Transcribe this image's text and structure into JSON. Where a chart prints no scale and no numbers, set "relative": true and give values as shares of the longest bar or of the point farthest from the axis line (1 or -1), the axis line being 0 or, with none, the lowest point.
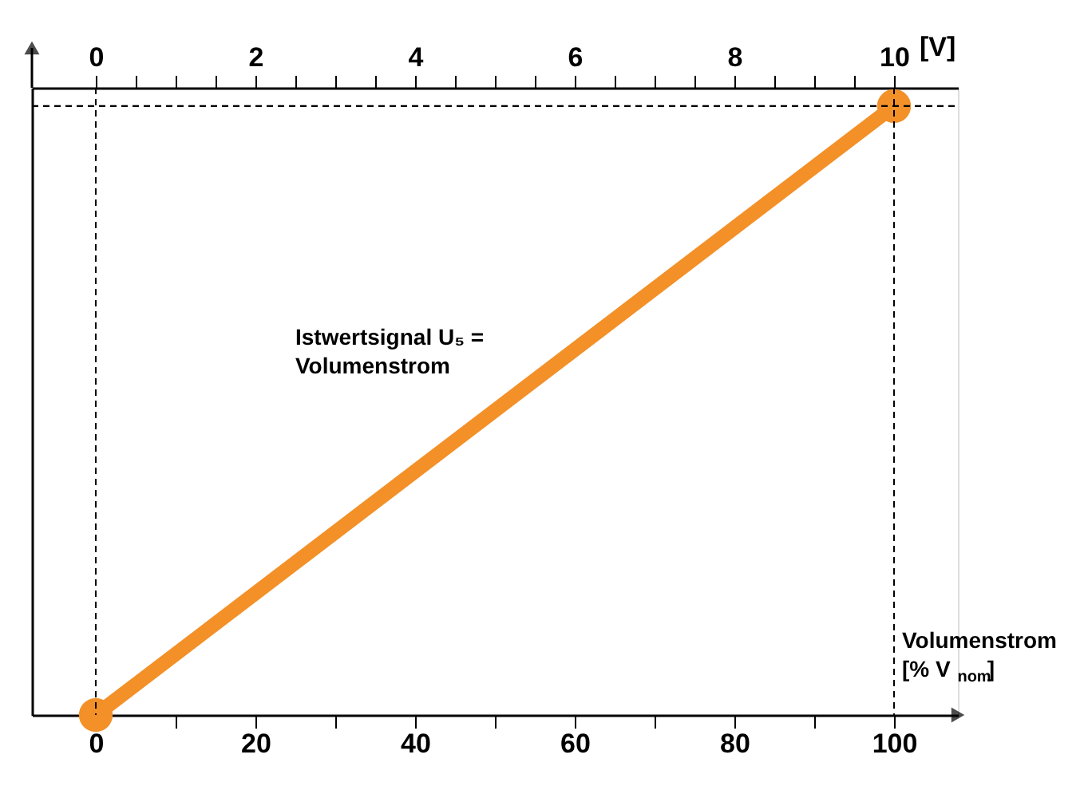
{
  "chart_data": {
    "type": "line",
    "x": [
      0,
      100
    ],
    "series": [
      {
        "color": "#f39028",
        "values": [
          0,
          1
        ]
      }
    ],
    "relative": true,
    "marker": "circle",
    "line_style": "solid",
    "xlabel": "Volumenstrom [% V$_{nom}$]",
    "x2label": "[V]",
    "xlim": [
      -8,
      108
    ],
    "xticks": [
      0,
      {
        "value": 10,
        "label": null
      },
      20,
      {
        "value": 30,
        "label": null
      },
      40,
      {
        "value": 50,
        "label": null
      },
      60,
      {
        "value": 70,
        "label": null
      },
      80,
      {
        "value": 90,
        "label": null
      },
      100
    ],
    "x2lim": [
      -0.8,
      10.8
    ],
    "x2ticks": [
      0,
      {
        "value": 0.5,
        "label": null
      },
      {
        "value": 1,
        "label": null
      },
      {
        "value": 1.5,
        "label": null
      },
      2,
      {
        "value": 2.5,
        "label": null
      },
      {
        "value": 3,
        "label": null
      },
      {
        "value": 3.5,
        "label": null
      },
      4,
      {
        "value": 4.5,
        "label": null
      },
      {
        "value": 5,
        "label": null
      },
      {
        "value": 5.5,
        "label": null
      },
      6,
      {
        "value": 6.5,
        "label": null
      },
      {
        "value": 7,
        "label": null
      },
      {
        "value": 7.5,
        "label": null
      },
      8,
      {
        "value": 8.5,
        "label": null
      },
      {
        "value": 9,
        "label": null
      },
      {
        "value": 9.5,
        "label": null
      },
      10
    ],
    "ref_lines": [
      {
        "axis": "x",
        "value": 0,
        "line_style": "dashed",
        "color": "#000000"
      },
      {
        "axis": "x",
        "value": 100,
        "line_style": "dashed",
        "color": "#000000"
      },
      {
        "axis": "y",
        "value": 1,
        "line_style": "dashed",
        "color": "#000000"
      }
    ],
    "annotations": [
      "Istwertsignal U₅ = Volumenstrom"
    ],
    "grid": false
  }
}
